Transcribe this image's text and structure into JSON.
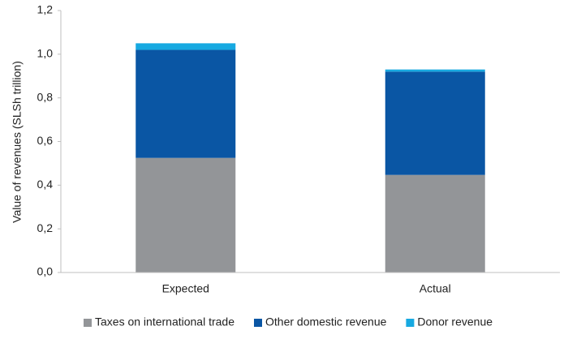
{
  "chart_data": {
    "type": "stacked_bar",
    "y_label": "Value of revenues (SLSh trillion)",
    "categories": [
      "Expected",
      "Actual"
    ],
    "series": [
      {
        "name": "Taxes on international trade",
        "color": "#939598",
        "values": [
          0.525,
          0.447
        ]
      },
      {
        "name": "Other domestic revenue",
        "color": "#0a56a4",
        "values": [
          0.495,
          0.473
        ]
      },
      {
        "name": "Donor revenue",
        "color": "#17a9e1",
        "values": [
          0.03,
          0.01
        ]
      }
    ],
    "ylim": [
      0,
      1.2
    ],
    "yticks": [
      {
        "value": 0,
        "label": "0,0"
      },
      {
        "value": 0.2,
        "label": "0,2"
      },
      {
        "value": 0.4,
        "label": "0,4"
      },
      {
        "value": 0.6,
        "label": "0,6"
      },
      {
        "value": 0.8,
        "label": "0,8"
      },
      {
        "value": 1,
        "label": "1,0"
      },
      {
        "value": 1.2,
        "label": "1,2"
      }
    ],
    "legend": "bottom"
  }
}
